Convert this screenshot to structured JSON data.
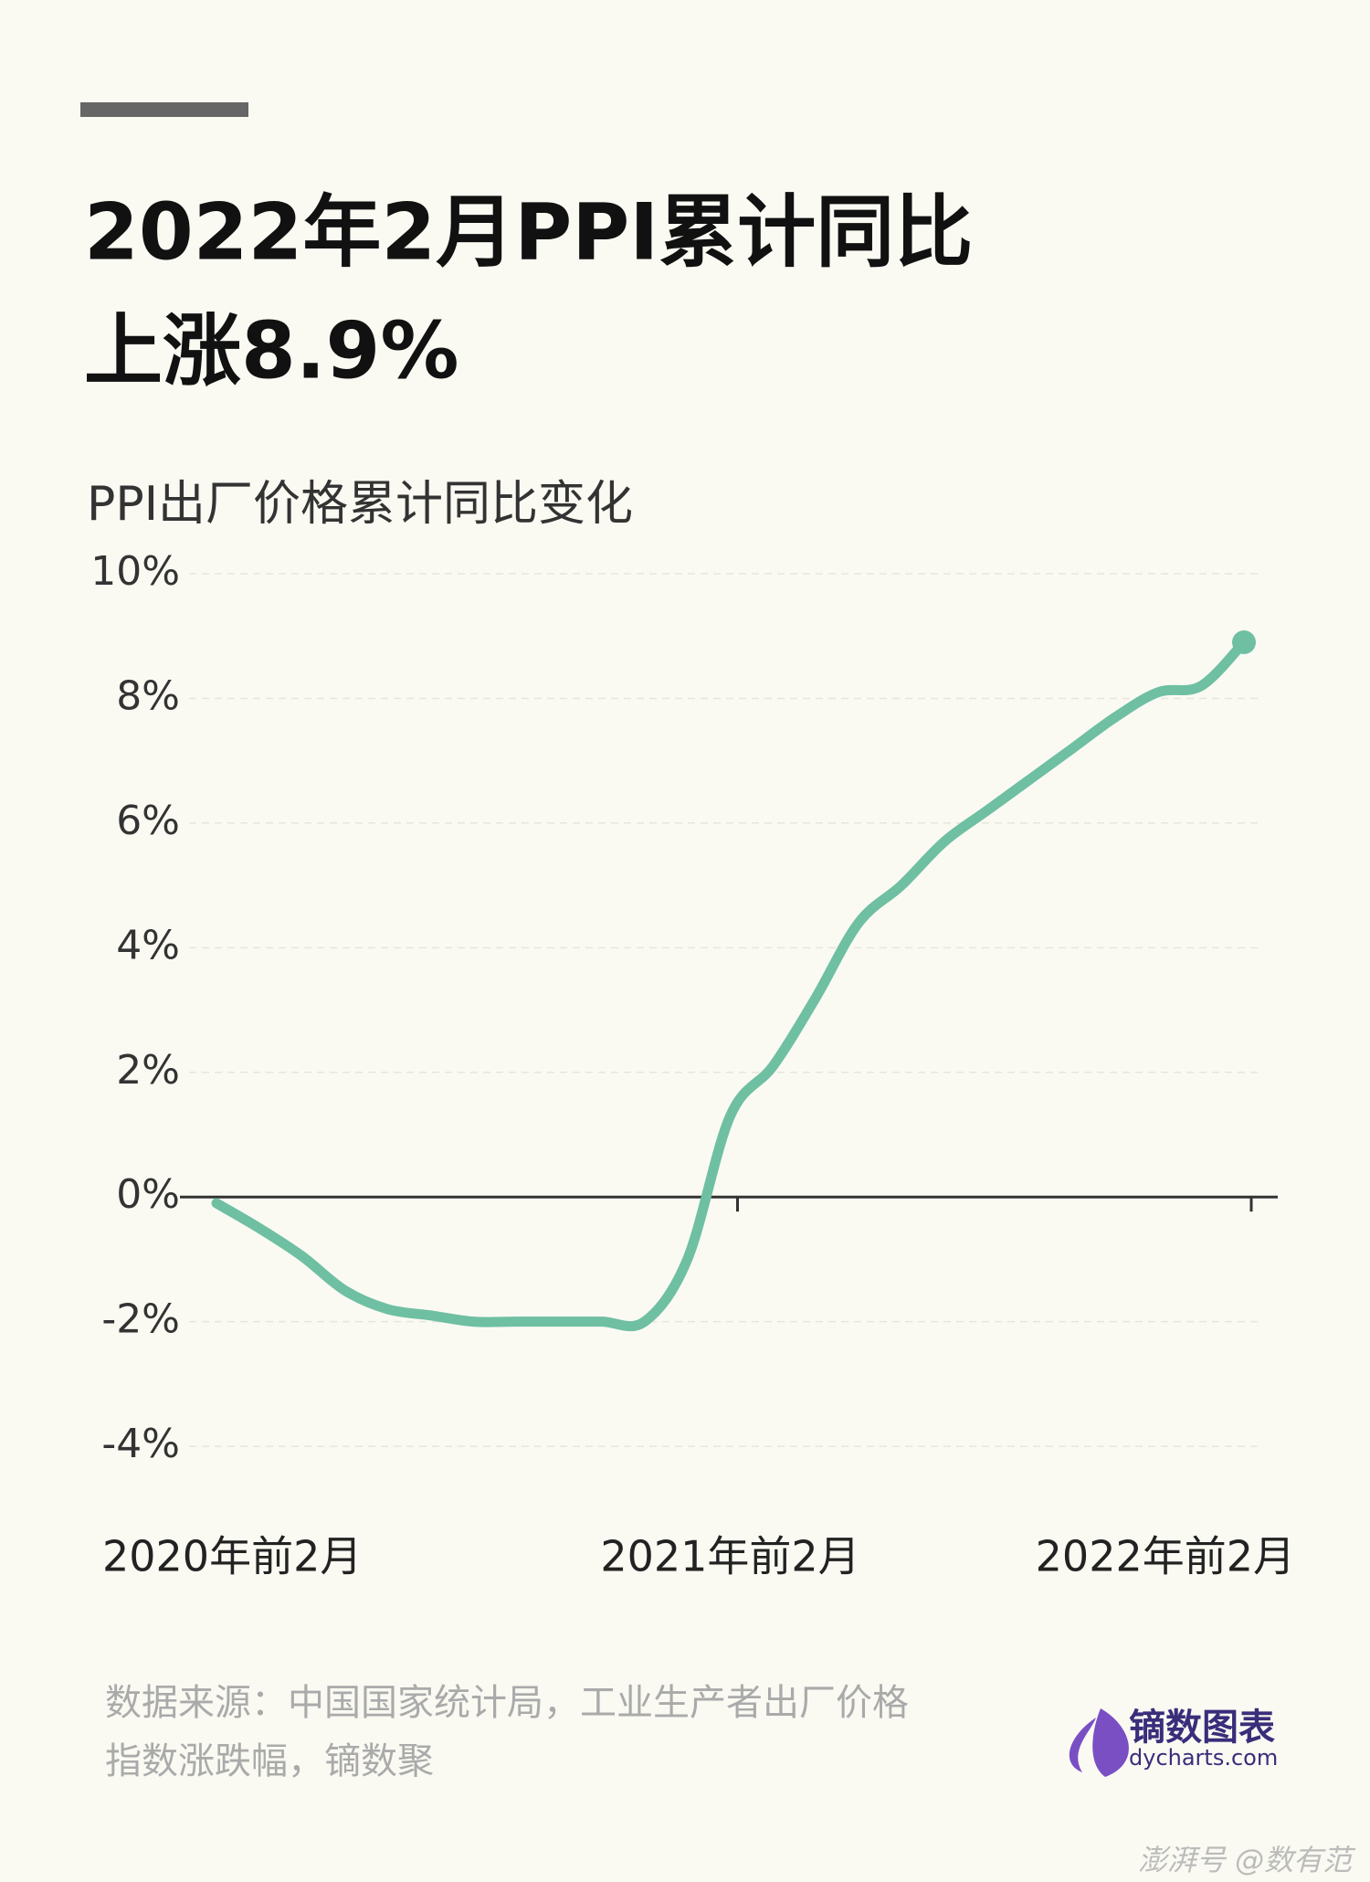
{
  "chart_data": {
    "type": "line",
    "title": [
      "2022年2月PPI累计同比",
      "上涨8.9%"
    ],
    "subtitle": "PPI出厂价格累计同比变化",
    "categories": [
      "2020年前2月",
      null,
      null,
      null,
      null,
      null,
      null,
      null,
      null,
      null,
      null,
      null,
      "2021年前2月",
      null,
      null,
      null,
      null,
      null,
      null,
      null,
      null,
      null,
      null,
      null,
      "2022年前2月"
    ],
    "series": [
      {
        "name": "PPI累计同比",
        "color": "#6fbfa3",
        "values": [
          -0.1,
          -0.5,
          -0.95,
          -1.5,
          -1.8,
          -1.9,
          -2.0,
          -2.0,
          -2.0,
          -2.0,
          -2.0,
          -1.0,
          1.3,
          2.1,
          3.2,
          4.4,
          5.0,
          5.7,
          6.2,
          6.7,
          7.2,
          7.7,
          8.1,
          8.2,
          8.9
        ]
      }
    ],
    "ylim": [
      -4.6,
      10
    ],
    "yticks": [
      {
        "value": -4,
        "label": "-4%"
      },
      {
        "value": -2,
        "label": "-2%"
      },
      {
        "value": 0,
        "label": "0%"
      },
      {
        "value": 2,
        "label": "2%"
      },
      {
        "value": 4,
        "label": "4%"
      },
      {
        "value": 6,
        "label": "6%"
      },
      {
        "value": 8,
        "label": "8%"
      },
      {
        "value": 10,
        "label": "10%"
      }
    ],
    "grid": true,
    "source": [
      "数据来源：中国国家统计局，工业生产者出厂价格",
      "指数涨跌幅，镝数聚"
    ],
    "logo": {
      "name": "镝数图表",
      "url": "dycharts.com"
    },
    "watermark": "澎湃号 @数有范"
  }
}
